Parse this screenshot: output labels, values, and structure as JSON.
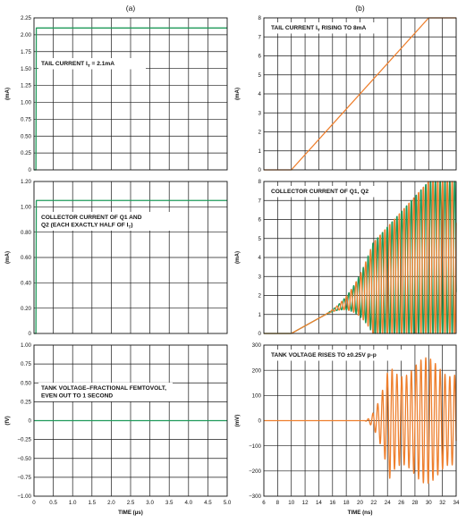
{
  "figure": {
    "colors": {
      "green": "#1f9a5a",
      "orange": "#ee7f2d",
      "grid": "#1a1a1a"
    }
  },
  "chart_data": [
    {
      "id": "a1",
      "type": "line",
      "panel_label": "(a)",
      "annotation": "TAIL CURRENT I_T = 2.1mA",
      "annotation_parts": [
        "TAIL CURRENT I",
        "T",
        " = 2.1mA"
      ],
      "ylabel": "(mA)",
      "xlabel": "",
      "xlim": [
        0,
        5
      ],
      "ylim": [
        0,
        2.25
      ],
      "xticks": [],
      "yticks": [
        0,
        0.25,
        0.5,
        0.75,
        1.0,
        1.25,
        1.5,
        1.75,
        2.0,
        2.25
      ],
      "ytick_labels": [
        "0",
        "0.25",
        "0.50",
        "0.75",
        "1.00",
        "1.25",
        "1.50",
        "1.75",
        "2.00",
        "2.25"
      ],
      "grid": true,
      "series": [
        {
          "color": "green",
          "x": [
            0,
            0.05,
            0.06,
            5
          ],
          "y": [
            0,
            0,
            2.1,
            2.1
          ]
        }
      ]
    },
    {
      "id": "a2",
      "type": "line",
      "annotation_lines": [
        "COLLECTOR CURRENT OF Q1 AND",
        "Q2 (EACH EXACTLY HALF OF I_T)"
      ],
      "annotation_parts_line2": [
        "Q2 (EACH EXACTLY HALF OF I",
        "T",
        ")"
      ],
      "ylabel": "(mA)",
      "xlabel": "",
      "xlim": [
        0,
        5
      ],
      "ylim": [
        0,
        1.2
      ],
      "xticks": [],
      "yticks": [
        0,
        0.2,
        0.4,
        0.6,
        0.8,
        1.0,
        1.2
      ],
      "ytick_labels": [
        "0",
        "0.20",
        "0.40",
        "0.60",
        "0.80",
        "1.00",
        "1.20"
      ],
      "grid": true,
      "series": [
        {
          "color": "green",
          "x": [
            0,
            0.05,
            0.06,
            5
          ],
          "y": [
            0,
            0,
            1.05,
            1.05
          ]
        }
      ]
    },
    {
      "id": "a3",
      "type": "line",
      "annotation_lines": [
        "TANK VOLTAGE–FRACTIONAL FEMTOVOLT,",
        "EVEN OUT TO 1 SECOND"
      ],
      "ylabel": "(fV)",
      "xlabel": "TIME (µs)",
      "xlim": [
        0,
        5
      ],
      "ylim": [
        -1.0,
        1.0
      ],
      "xticks": [
        0,
        0.5,
        1.0,
        1.5,
        2.0,
        2.5,
        3.0,
        3.5,
        4.0,
        4.5,
        5.0
      ],
      "xtick_labels": [
        "0",
        "0.5",
        "1.0",
        "1.5",
        "2.0",
        "2.5",
        "3.0",
        "3.5",
        "4.0",
        "4.5",
        "5.0"
      ],
      "yticks": [
        -1.0,
        -0.75,
        -0.5,
        -0.25,
        0,
        0.25,
        0.5,
        0.75,
        1.0
      ],
      "ytick_labels": [
        "−1.00",
        "−0.75",
        "−0.50",
        "−0.25",
        "0",
        "0.25",
        "0.50",
        "0.75",
        "1.00"
      ],
      "grid": true,
      "series": [
        {
          "color": "green",
          "x": [
            0,
            5
          ],
          "y": [
            0,
            0
          ]
        }
      ]
    },
    {
      "id": "b1",
      "type": "line",
      "panel_label": "(b)",
      "annotation_parts": [
        "TAIL CURRENT I",
        "T",
        " RISING TO 8mA"
      ],
      "ylabel": "(mA)",
      "xlabel": "",
      "xlim": [
        6,
        34
      ],
      "ylim": [
        0,
        8
      ],
      "xticks": [],
      "yticks": [
        0,
        1,
        2,
        3,
        4,
        5,
        6,
        7,
        8
      ],
      "ytick_labels": [
        "0",
        "1",
        "2",
        "3",
        "4",
        "5",
        "6",
        "7",
        "8"
      ],
      "grid": true,
      "series": [
        {
          "color": "orange",
          "x": [
            6,
            10,
            30,
            34
          ],
          "y": [
            0,
            0,
            8,
            8
          ]
        }
      ]
    },
    {
      "id": "b2",
      "type": "line",
      "annotation": "COLLECTOR CURRENT OF Q1, Q2",
      "ylabel": "(mA)",
      "xlabel": "",
      "xlim": [
        6,
        34
      ],
      "ylim": [
        0,
        8
      ],
      "xticks": [],
      "yticks": [
        0,
        1,
        2,
        3,
        4,
        5,
        6,
        7,
        8
      ],
      "ytick_labels": [
        "0",
        "1",
        "2",
        "3",
        "4",
        "5",
        "6",
        "7",
        "8"
      ],
      "grid": true,
      "signal": {
        "kind": "collector_pair",
        "ramp_start": 10,
        "ramp_end": 30,
        "peak": 8,
        "growth_start": 14,
        "saturate_at": 22,
        "period_ns": 0.7
      },
      "series": [
        {
          "color": "green"
        },
        {
          "color": "orange"
        }
      ]
    },
    {
      "id": "b3",
      "type": "line",
      "annotation": "TANK VOLTAGE RISES TO ±0.25V p-p",
      "ylabel": "(mV)",
      "xlabel": "TIME (ns)",
      "xlim": [
        6,
        34
      ],
      "ylim": [
        -300,
        300
      ],
      "xticks": [
        6,
        8,
        10,
        12,
        14,
        16,
        18,
        20,
        22,
        24,
        26,
        28,
        30,
        32,
        34
      ],
      "xtick_labels": [
        "6",
        "8",
        "10",
        "12",
        "14",
        "16",
        "18",
        "20",
        "22",
        "24",
        "26",
        "28",
        "30",
        "32",
        "34"
      ],
      "yticks": [
        -300,
        -200,
        -100,
        0,
        100,
        200,
        300
      ],
      "ytick_labels": [
        "−300",
        "−200",
        "−100",
        "0",
        "100",
        "200",
        "300"
      ],
      "grid": true,
      "signal": {
        "kind": "tank_voltage",
        "start": 20.5,
        "saturate_at": 24.5,
        "amplitude": 250,
        "period_ns": 0.7
      },
      "series": [
        {
          "color": "orange"
        }
      ]
    }
  ]
}
